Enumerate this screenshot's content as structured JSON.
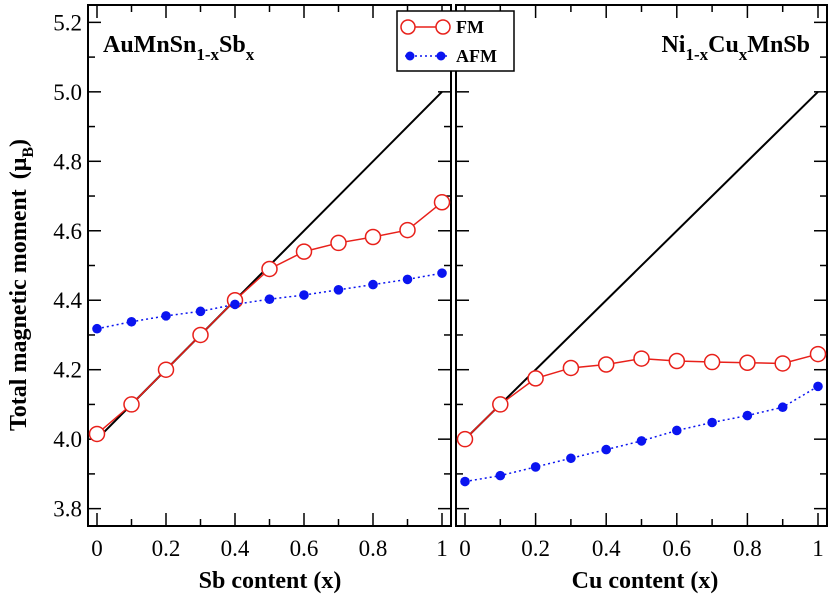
{
  "figure": {
    "ylabel_main": "Total magnetic moment",
    "ylabel_unit_symbol": "μ",
    "ylabel_unit_sub": "B",
    "legend": [
      {
        "name": "FM",
        "color": "#e8201a",
        "marker": "open-circle",
        "linestyle": "solid"
      },
      {
        "name": "AFM",
        "color": "#0a14f0",
        "marker": "filled-circle",
        "linestyle": "dotted"
      }
    ]
  },
  "chart_data": [
    {
      "type": "line",
      "title_parts": {
        "a": "AuMnSn",
        "sub1": "1-x",
        "b": "Sb",
        "sub2": "x"
      },
      "xlabel": "Sb content  (x)",
      "xlim": [
        0,
        1
      ],
      "ylim": [
        3.75,
        5.25
      ],
      "xticks": [
        "0",
        "0.2",
        "0.4",
        "0.6",
        "0.8",
        "1"
      ],
      "yticks": [
        "3.8",
        "4.0",
        "4.2",
        "4.4",
        "4.6",
        "4.8",
        "5.0",
        "5.2"
      ],
      "reference_line": {
        "x": [
          0,
          1
        ],
        "y": [
          4.0,
          5.0
        ],
        "color": "#000000"
      },
      "x": [
        0,
        0.1,
        0.2,
        0.3,
        0.4,
        0.5,
        0.6,
        0.7,
        0.8,
        0.9,
        1.0
      ],
      "series": [
        {
          "name": "FM",
          "values": [
            4.015,
            4.1,
            4.2,
            4.3,
            4.4,
            4.49,
            4.54,
            4.565,
            4.582,
            4.602,
            4.682
          ]
        },
        {
          "name": "AFM",
          "values": [
            4.318,
            4.338,
            4.355,
            4.368,
            4.388,
            4.403,
            4.415,
            4.43,
            4.445,
            4.46,
            4.478
          ]
        }
      ]
    },
    {
      "type": "line",
      "title_parts": {
        "a": "Ni",
        "sub1": "1-x",
        "b": "Cu",
        "sub2": "x",
        "c": "MnSb"
      },
      "xlabel": "Cu content  (x)",
      "xlim": [
        0,
        1
      ],
      "ylim": [
        3.75,
        5.25
      ],
      "xticks": [
        "0",
        "0.2",
        "0.4",
        "0.6",
        "0.8",
        "1"
      ],
      "reference_line": {
        "x": [
          0,
          1
        ],
        "y": [
          4.0,
          5.0
        ],
        "color": "#000000"
      },
      "x": [
        0,
        0.1,
        0.2,
        0.3,
        0.4,
        0.5,
        0.6,
        0.7,
        0.8,
        0.9,
        1.0
      ],
      "series": [
        {
          "name": "FM",
          "values": [
            4.0,
            4.1,
            4.175,
            4.205,
            4.215,
            4.232,
            4.225,
            4.222,
            4.22,
            4.218,
            4.245
          ]
        },
        {
          "name": "AFM",
          "values": [
            3.878,
            3.895,
            3.92,
            3.945,
            3.97,
            3.995,
            4.025,
            4.048,
            4.068,
            4.092,
            4.152
          ]
        }
      ]
    }
  ]
}
